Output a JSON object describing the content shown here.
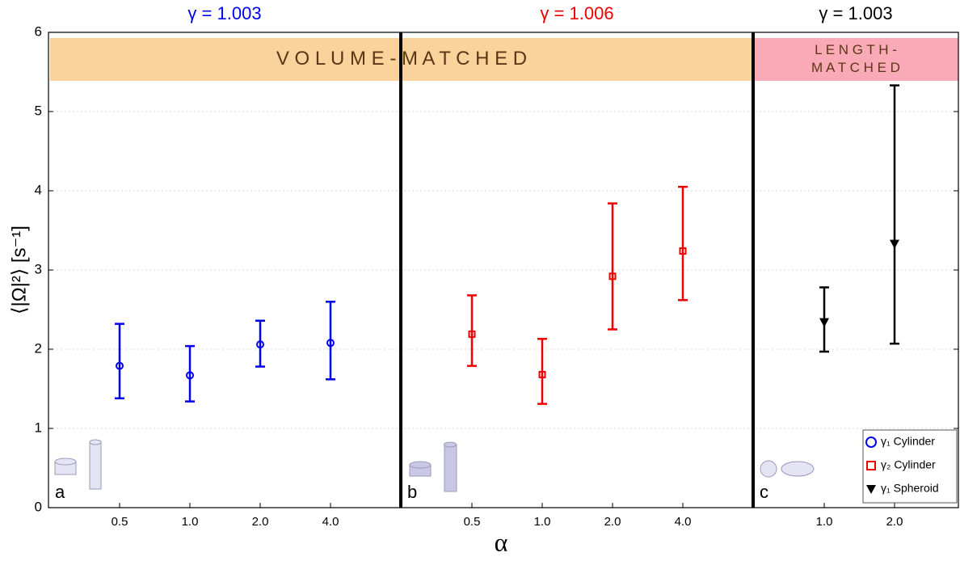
{
  "chart_data": {
    "type": "errorbar",
    "xlabel": "α",
    "ylabel": "⟨|Ω|²⟩ [s⁻¹]",
    "ylim": [
      0,
      6
    ],
    "yticks": [
      0,
      1,
      2,
      3,
      4,
      5,
      6
    ],
    "grid": true,
    "legend_position": "lower right",
    "bands": [
      {
        "lines": [
          "V O L U M E - M A T C H E D"
        ],
        "color": "#fad39c"
      },
      {
        "lines": [
          "L E N G T H -",
          "M A T C H E D"
        ],
        "color": "#f9aab6"
      }
    ],
    "panels": [
      {
        "label": "a",
        "title": "γ = 1.003",
        "name": "γ₁ Cylinder",
        "color": "#0000ee",
        "marker": "circle",
        "categories": [
          "0.5",
          "1.0",
          "2.0",
          "4.0"
        ],
        "values": [
          1.79,
          1.67,
          2.06,
          2.08
        ],
        "low": [
          1.38,
          1.34,
          1.78,
          1.62
        ],
        "high": [
          2.32,
          2.04,
          2.36,
          2.6
        ]
      },
      {
        "label": "b",
        "title": "γ = 1.006",
        "name": "γ₂ Cylinder",
        "color": "#ee0000",
        "marker": "square",
        "categories": [
          "0.5",
          "1.0",
          "2.0",
          "4.0"
        ],
        "values": [
          2.19,
          1.68,
          2.92,
          3.24
        ],
        "low": [
          1.79,
          1.31,
          2.25,
          2.62
        ],
        "high": [
          2.68,
          2.13,
          3.84,
          4.05
        ]
      },
      {
        "label": "c",
        "title": "γ = 1.003",
        "name": "γ₁ Spheroid",
        "color": "#000000",
        "marker": "triangle-down",
        "categories": [
          "1.0",
          "2.0"
        ],
        "values": [
          2.34,
          3.33
        ],
        "low": [
          1.97,
          2.07
        ],
        "high": [
          2.78,
          5.33
        ]
      }
    ]
  }
}
